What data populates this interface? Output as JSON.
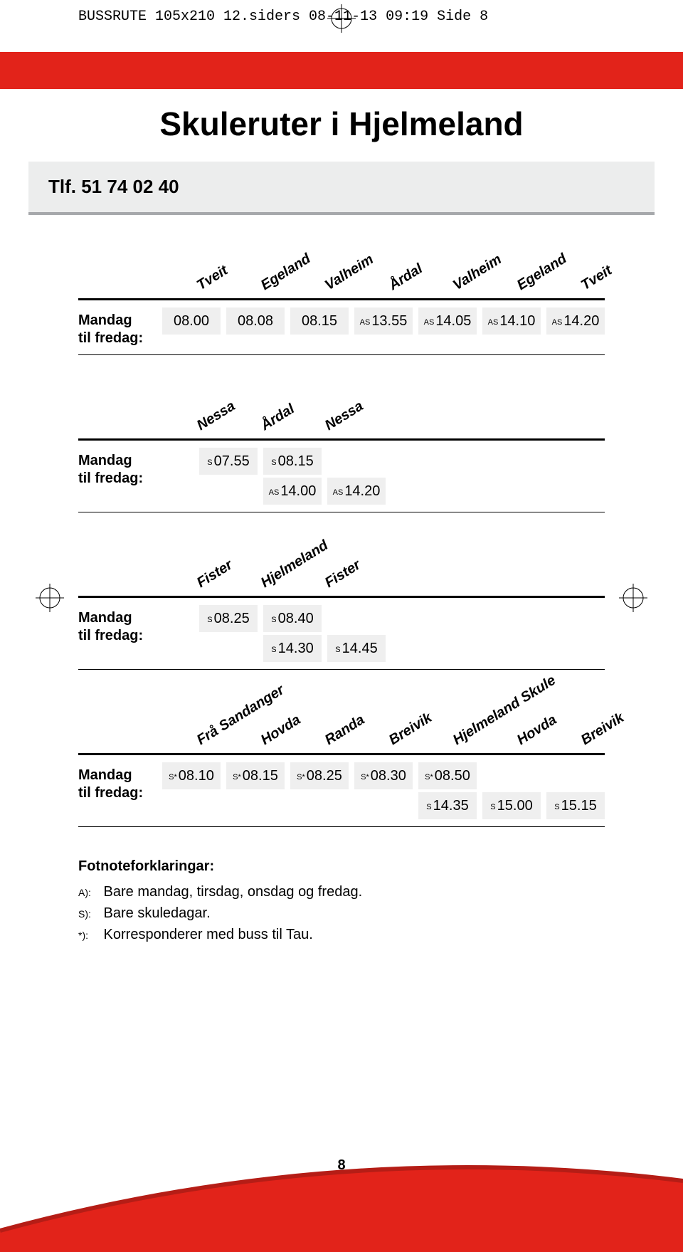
{
  "header": {
    "doc_line": "BUSSRUTE 105x210 12.siders  08-11-13  09:19  Side 8"
  },
  "colors": {
    "brand_red": "#e2231a",
    "box_gray": "#eceded",
    "box_border": "#a6a8ab",
    "cell_bg": "#efefef"
  },
  "title": "Skuleruter i Hjelmeland",
  "phone": {
    "label": "Tlf. 51 74 02 40"
  },
  "tables": [
    {
      "headers": [
        "Tveit",
        "Egeland",
        "Valheim",
        "Årdal",
        "Valheim",
        "Egeland",
        "Tveit"
      ],
      "row_label": "Mandag\ntil fredag:",
      "rows": [
        [
          {
            "v": "08.00"
          },
          {
            "v": "08.08"
          },
          {
            "v": "08.15"
          },
          {
            "v": "13.55",
            "p": "AS"
          },
          {
            "v": "14.05",
            "p": "AS"
          },
          {
            "v": "14.10",
            "p": "AS"
          },
          {
            "v": "14.20",
            "p": "AS"
          }
        ]
      ]
    },
    {
      "headers": [
        "Nessa",
        "Årdal",
        "Nessa"
      ],
      "row_label": "Mandag\ntil fredag:",
      "rows": [
        [
          {
            "v": "07.55",
            "p": "S"
          },
          {
            "v": "08.15",
            "p": "S"
          },
          {
            "empty": true
          }
        ],
        [
          {
            "empty": true
          },
          {
            "v": "14.00",
            "p": "AS"
          },
          {
            "v": "14.20",
            "p": "AS"
          }
        ]
      ]
    },
    {
      "headers": [
        "Fister",
        "Hjelmeland",
        "Fister"
      ],
      "row_label": "Mandag\ntil fredag:",
      "rows": [
        [
          {
            "v": "08.25",
            "p": "S"
          },
          {
            "v": "08.40",
            "p": "S"
          },
          {
            "empty": true
          }
        ],
        [
          {
            "empty": true
          },
          {
            "v": "14.30",
            "p": "S"
          },
          {
            "v": "14.45",
            "p": "S"
          }
        ]
      ]
    },
    {
      "headers": [
        "Frå Sandanger",
        "Hovda",
        "Randa",
        "Breivik",
        "Hjelmeland Skule",
        "Hovda",
        "Breivik"
      ],
      "row_label": "Mandag\ntil fredag:",
      "rows": [
        [
          {
            "v": "08.10",
            "p": "S*"
          },
          {
            "v": "08.15",
            "p": "S*"
          },
          {
            "v": "08.25",
            "p": "S*"
          },
          {
            "v": "08.30",
            "p": "S*"
          },
          {
            "v": "08.50",
            "p": "S*"
          },
          {
            "empty": true
          },
          {
            "empty": true
          }
        ],
        [
          {
            "empty": true
          },
          {
            "empty": true
          },
          {
            "empty": true
          },
          {
            "empty": true
          },
          {
            "v": "14.35",
            "p": "S"
          },
          {
            "v": "15.00",
            "p": "S"
          },
          {
            "v": "15.15",
            "p": "S"
          }
        ]
      ]
    }
  ],
  "footnotes": {
    "title": "Fotnoteforklaringar:",
    "items": [
      {
        "k": "A):",
        "t": "Bare mandag, tirsdag, onsdag og fredag."
      },
      {
        "k": "S):",
        "t": "Bare skuledagar."
      },
      {
        "k": "*):",
        "t": "Korresponderer med buss til Tau."
      }
    ]
  },
  "page_number": "8"
}
